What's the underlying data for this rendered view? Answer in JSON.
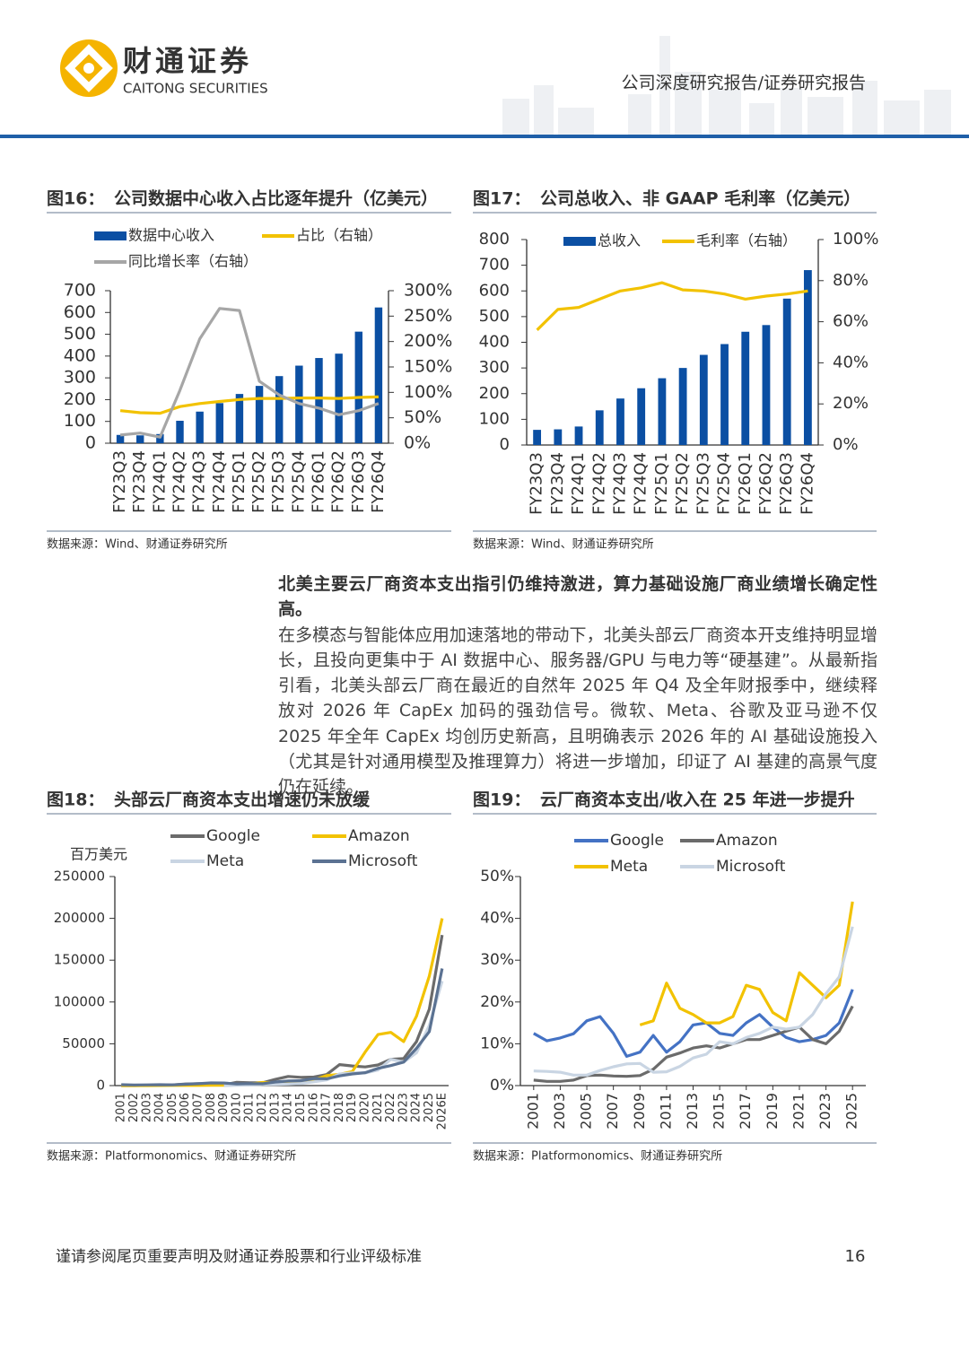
{
  "header": {
    "logo_cn": "财通证券",
    "logo_en": "CAITONG SECURITIES",
    "report_type": "公司深度研究报告/证券研究报告"
  },
  "figures": [
    {
      "label": "图16：",
      "title": "公司数据中心收入占比逐年提升（亿美元）",
      "source": "数据来源：Wind、财通证券研究所",
      "chart_data": {
        "type": "combo",
        "categories": [
          "FY23Q3",
          "FY23Q4",
          "FY24Q1",
          "FY24Q2",
          "FY24Q3",
          "FY24Q4",
          "FY25Q1",
          "FY25Q2",
          "FY25Q3",
          "FY25Q4",
          "FY26Q1",
          "FY26Q2",
          "FY26Q3",
          "FY26Q4"
        ],
        "series": [
          {
            "name": "数据中心收入",
            "type": "bar",
            "color": "#0b4fa3",
            "values": [
              38,
              36,
              42,
              103,
              145,
              184,
              226,
              263,
              308,
              356,
              391,
              411,
              512,
              623
            ]
          },
          {
            "name": "占比（右轴）",
            "type": "line",
            "axis": "y2",
            "color": "#f2c200",
            "values": [
              64,
              60,
              59,
              72,
              78,
              82,
              86,
              88,
              88,
              89,
              89,
              88,
              90,
              91
            ]
          },
          {
            "name": "同比增长率（右轴）",
            "type": "line",
            "axis": "y2",
            "color": "#a6a6a6",
            "values": [
              16,
              20,
              12,
              104,
              205,
              265,
              261,
              122,
              95,
              78,
              69,
              56,
              64,
              78
            ]
          }
        ],
        "ylim": [
          0,
          700
        ],
        "yticks": [
          0,
          100,
          200,
          300,
          400,
          500,
          600,
          700
        ],
        "y2lim": [
          0,
          300
        ],
        "y2ticks": [
          {
            "value": 0,
            "label": "0%"
          },
          {
            "value": 50,
            "label": "50%"
          },
          {
            "value": 100,
            "label": "100%"
          },
          {
            "value": 150,
            "label": "150%"
          },
          {
            "value": 200,
            "label": "200%"
          },
          {
            "value": 250,
            "label": "250%"
          },
          {
            "value": 300,
            "label": "300%"
          }
        ],
        "grid": false
      }
    },
    {
      "label": "图17：",
      "title": "公司总收入、非 GAAP 毛利率（亿美元）",
      "source": "数据来源：Wind、财通证券研究所",
      "chart_data": {
        "type": "combo",
        "categories": [
          "FY23Q3",
          "FY23Q4",
          "FY24Q1",
          "FY24Q2",
          "FY24Q3",
          "FY24Q4",
          "FY25Q1",
          "FY25Q2",
          "FY25Q3",
          "FY25Q4",
          "FY26Q1",
          "FY26Q2",
          "FY26Q3",
          "FY26Q4"
        ],
        "series": [
          {
            "name": "总收入",
            "type": "bar",
            "color": "#0b4fa3",
            "values": [
              59,
              61,
              72,
              135,
              181,
              221,
              260,
              300,
              351,
              393,
              441,
              467,
              570,
              681
            ]
          },
          {
            "name": "毛利率（右轴）",
            "type": "line",
            "axis": "y2",
            "color": "#f2c200",
            "values": [
              56,
              66,
              67,
              71,
              75,
              76.5,
              79,
              75.5,
              75,
              73.5,
              71,
              72.5,
              73.5,
              75
            ]
          }
        ],
        "ylim": [
          0,
          800
        ],
        "yticks": [
          0,
          100,
          200,
          300,
          400,
          500,
          600,
          700,
          800
        ],
        "y2lim": [
          0,
          100
        ],
        "y2ticks": [
          {
            "value": 0,
            "label": "0%"
          },
          {
            "value": 20,
            "label": "20%"
          },
          {
            "value": 40,
            "label": "40%"
          },
          {
            "value": 60,
            "label": "60%"
          },
          {
            "value": 80,
            "label": "80%"
          },
          {
            "value": 100,
            "label": "100%"
          }
        ],
        "grid": false
      }
    },
    {
      "label": "图18：",
      "title": "头部云厂商资本支出增速仍未放缓",
      "source": "数据来源：Platformonomics、财通证券研究所",
      "chart_data": {
        "type": "line",
        "y_label": "百万美元",
        "categories": [
          "2001",
          "2002",
          "2003",
          "2004",
          "2005",
          "2006",
          "2007",
          "2008",
          "2009",
          "2010",
          "2011",
          "2012",
          "2013",
          "2014",
          "2015",
          "2016",
          "2017",
          "2018",
          "2019",
          "2020",
          "2021",
          "2022",
          "2023",
          "2024",
          "2025",
          "2026E"
        ],
        "series": [
          {
            "name": "Google",
            "color": "#6b6b6b",
            "values": [
              13,
              37,
              177,
              319,
              838,
              1903,
              2403,
              2358,
              810,
              4018,
              3438,
              3273,
              7358,
              10959,
              9915,
              10212,
              13184,
              25139,
              23548,
              22281,
              24640,
              31485,
              32251,
              52535,
              91400,
              180000
            ]
          },
          {
            "name": "Amazon",
            "color": "#f2c200",
            "values": [
              50,
              39,
              46,
              89,
              204,
              216,
              224,
              333,
              373,
              979,
              1811,
              3785,
              3444,
              4893,
              4589,
              6737,
              11955,
              13427,
              16861,
              40140,
              61053,
              63645,
              52729,
              83004,
              131000,
              200000
            ]
          },
          {
            "name": "Meta",
            "color": "#c9d5e3",
            "values": [
              null,
              null,
              null,
              null,
              null,
              null,
              null,
              null,
              33,
              293,
              606,
              1235,
              1362,
              1831,
              2523,
              4491,
              6733,
              13915,
              15102,
              15115,
              18567,
              31431,
              28101,
              39231,
              72000,
              125000
            ]
          },
          {
            "name": "Microsoft",
            "color": "#5b7292",
            "values": [
              1103,
              770,
              891,
              1109,
              812,
              1578,
              2264,
              3182,
              3119,
              1977,
              2355,
              2305,
              4257,
              5485,
              5944,
              8343,
              8129,
              11632,
              13925,
              15441,
              20622,
              23886,
              28107,
              44477,
              64551,
              140000
            ]
          }
        ],
        "ylim": [
          0,
          250000
        ],
        "yticks": [
          0,
          50000,
          100000,
          150000,
          200000,
          250000
        ],
        "grid": false
      }
    },
    {
      "label": "图19：",
      "title": "云厂商资本支出/收入在 25 年进一步提升",
      "source": "数据来源：Platformonomics、财通证券研究所",
      "chart_data": {
        "type": "line",
        "x": [
          2001,
          2002,
          2003,
          2004,
          2005,
          2006,
          2007,
          2008,
          2009,
          2010,
          2011,
          2012,
          2013,
          2014,
          2015,
          2016,
          2017,
          2018,
          2019,
          2020,
          2021,
          2022,
          2023,
          2024,
          2025
        ],
        "series": [
          {
            "name": "Google",
            "color": "#4472c4",
            "values": [
              12.5,
              10.7,
              11.4,
              12.4,
              15.5,
              16.5,
              12.5,
              7,
              8,
              12,
              8,
              10.5,
              14.5,
              15,
              12.5,
              12,
              15,
              17,
              14,
              11.5,
              10.5,
              11,
              12,
              15,
              23
            ]
          },
          {
            "name": "Amazon",
            "color": "#6b6b6b",
            "values": [
              1.3,
              1,
              1,
              1.3,
              2.4,
              2.5,
              2.3,
              2.2,
              2.4,
              3.9,
              6.8,
              7.8,
              9,
              9.5,
              9,
              10,
              11,
              11,
              12,
              13,
              14,
              11,
              10,
              13,
              19
            ]
          },
          {
            "name": "Meta",
            "color": "#f2c200",
            "values": [
              null,
              null,
              null,
              null,
              null,
              null,
              null,
              null,
              14.5,
              15.5,
              24.5,
              18.5,
              17,
              15,
              15,
              16.5,
              24,
              23,
              17.5,
              15.5,
              27,
              24,
              21,
              24,
              44
            ]
          },
          {
            "name": "Microsoft",
            "color": "#c9d5e3",
            "values": [
              3.5,
              3.4,
              3.2,
              2.5,
              2.5,
              3.6,
              4.5,
              5.2,
              5.3,
              3.2,
              3.3,
              4.6,
              6.6,
              7.5,
              10.5,
              10,
              11.5,
              12.5,
              14,
              13.5,
              14,
              17,
              22,
              26,
              38
            ]
          }
        ],
        "xlim": [
          2000,
          2026
        ],
        "xticks": [
          2001,
          2003,
          2005,
          2007,
          2009,
          2011,
          2013,
          2015,
          2017,
          2019,
          2021,
          2023,
          2025
        ],
        "ylim": [
          0,
          50
        ],
        "yticks": [
          {
            "value": 0,
            "label": "0%"
          },
          {
            "value": 10,
            "label": "10%"
          },
          {
            "value": 20,
            "label": "20%"
          },
          {
            "value": 30,
            "label": "30%"
          },
          {
            "value": 40,
            "label": "40%"
          },
          {
            "value": 50,
            "label": "50%"
          }
        ],
        "grid": false
      }
    }
  ],
  "body": {
    "heading": "北美主要云厂商资本支出指引仍维持激进，算力基础设施厂商业绩增长确定性高。",
    "text": "在多模态与智能体应用加速落地的带动下，北美头部云厂商资本开支维持明显增长，且投向更集中于 AI 数据中心、服务器/GPU 与电力等“硬基建”。从最新指引看，北美头部云厂商在最近的自然年 2025 年 Q4 及全年财报季中，继续释放对 2026 年 CapEx 加码的强劲信号。微软、Meta、谷歌及亚马逊不仅 2025 年全年 CapEx 均创历史新高，且明确表示 2026 年的 AI 基础设施投入（尤其是针对通用模型及推理算力）将进一步增加，印证了 AI 基建的高景气度仍在延续。"
  },
  "footer": {
    "disclaimer": "谨请参阅尾页重要声明及财通证券股票和行业评级标准",
    "page": "16"
  }
}
